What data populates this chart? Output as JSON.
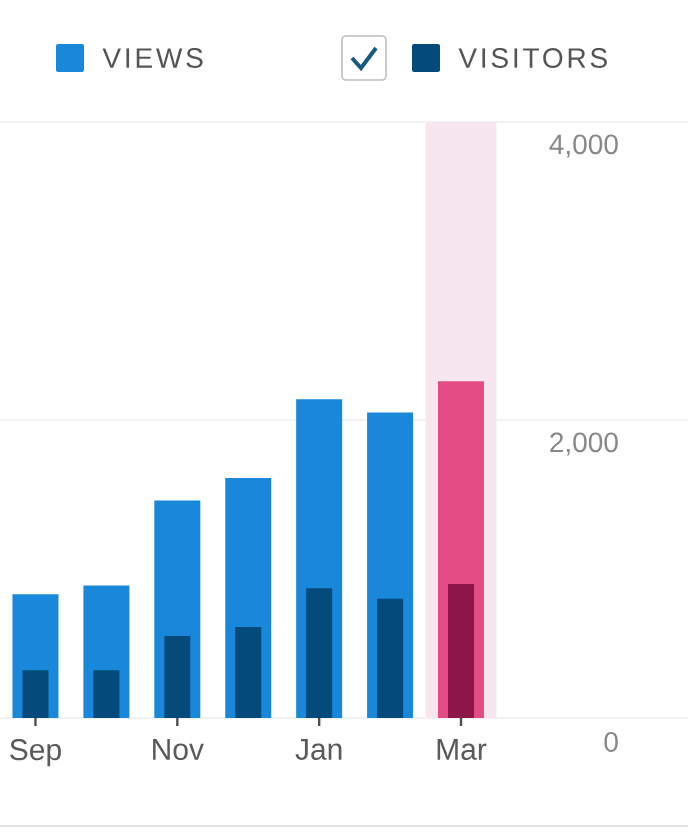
{
  "chart_data": {
    "type": "bar",
    "categories": [
      "Sep",
      null,
      "Nov",
      null,
      "Jan",
      null,
      "Mar"
    ],
    "series": [
      {
        "name": "VIEWS",
        "color": "#1a88da",
        "colors": [
          "#1a88da",
          "#1a88da",
          "#1a88da",
          "#1a88da",
          "#1a88da",
          "#1a88da",
          "#e34c84"
        ],
        "values": [
          830,
          890,
          1460,
          1610,
          2140,
          2050,
          2260
        ]
      },
      {
        "name": "VISITORS",
        "color": "#044a7a",
        "colors": [
          "#044a7a",
          "#044a7a",
          "#044a7a",
          "#044a7a",
          "#044a7a",
          "#044a7a",
          "#8c1748"
        ],
        "values": [
          320,
          320,
          550,
          610,
          870,
          800,
          900
        ]
      }
    ],
    "ylim": [
      0,
      4000
    ],
    "yticks": [
      0,
      {
        "value": 2000,
        "label": "2,000"
      },
      {
        "value": 4000,
        "label": "4,000"
      }
    ],
    "grid": "y",
    "legend": "top",
    "bands": [
      {
        "axis": "x",
        "from": "Mar",
        "to": "Mar",
        "color": "#f8e6ee"
      }
    ]
  }
}
